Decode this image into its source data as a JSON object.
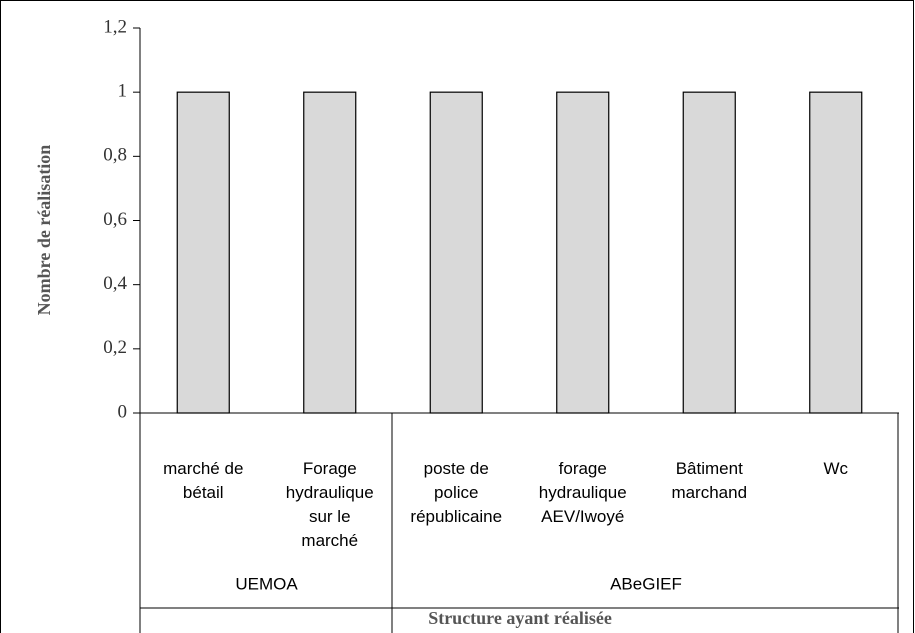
{
  "chart_data": {
    "type": "bar",
    "categories": [
      [
        "marché de",
        "bétail"
      ],
      [
        "Forage",
        "hydraulique",
        "sur le",
        "marché"
      ],
      [
        "poste de",
        "police",
        "républicaine"
      ],
      [
        "forage",
        "hydraulique",
        "AEV/Iwoyé"
      ],
      [
        "Bâtiment",
        "marchand"
      ],
      [
        "Wc"
      ]
    ],
    "groups": [
      {
        "label": "UEMOA",
        "size": 2
      },
      {
        "label": "ABeGIEF",
        "size": 4
      }
    ],
    "values": [
      1,
      1,
      1,
      1,
      1,
      1
    ],
    "color": "#d9d9d9",
    "ylim": [
      0,
      1.2
    ],
    "yticks": [
      0,
      {
        "value": 0.2,
        "label": "0,2"
      },
      {
        "value": 0.4,
        "label": "0,4"
      },
      {
        "value": 0.6,
        "label": "0,6"
      },
      {
        "value": 0.8,
        "label": "0,8"
      },
      1,
      {
        "value": 1.2,
        "label": "1,2"
      }
    ],
    "ylabel": "Nombre de réalisation",
    "xlabel": "Structure ayant réalisée",
    "grid": false
  }
}
